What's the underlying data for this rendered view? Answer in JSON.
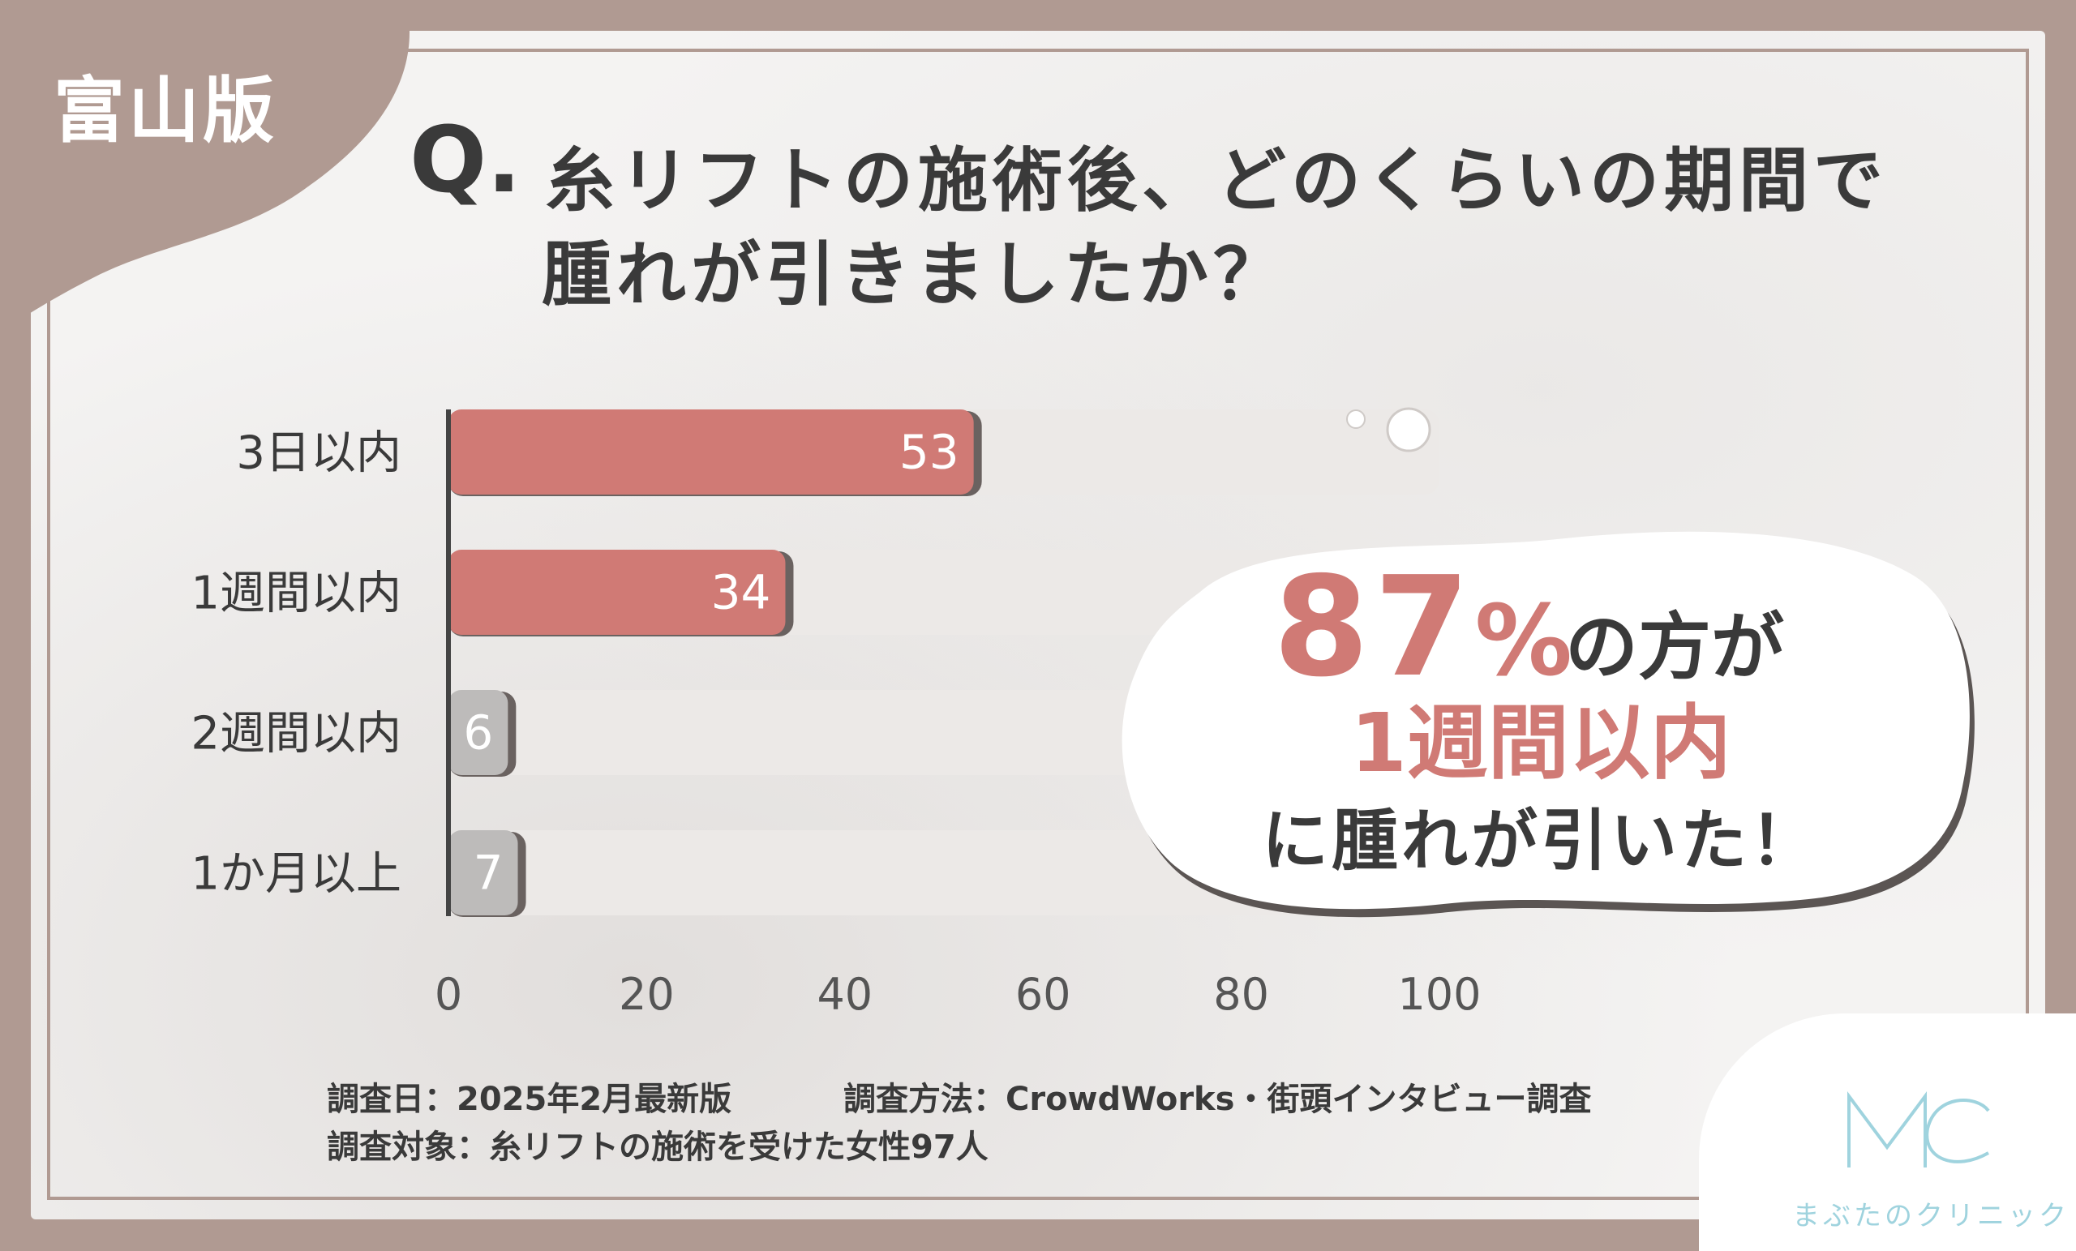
{
  "badge": "富山版",
  "title": {
    "q_mark": "Q.",
    "line1": "糸リフトの施術後、どのくらいの期間で",
    "line2": "腫れが引きましたか？"
  },
  "chart_data": {
    "type": "bar",
    "orientation": "horizontal",
    "categories": [
      "3日以内",
      "1週間以内",
      "2週間以内",
      "1か月以上"
    ],
    "values": [
      53,
      34,
      6,
      7
    ],
    "xlim": [
      0,
      100
    ],
    "xticks": [
      "0",
      "20",
      "40",
      "60",
      "80",
      "100"
    ],
    "grid": false,
    "colors": {
      "highlight": "#d07a75",
      "muted": "#bdbbba",
      "track": "#ece9e7",
      "axis": "#444444"
    },
    "highlight_categories": [
      "3日以内",
      "1週間以内"
    ]
  },
  "callout": {
    "percent": "87",
    "percent_sign": "%",
    "text1": "の方が",
    "text2": "1週間以内",
    "text3": "に腫れが引いた！"
  },
  "footer": {
    "date": "調査日：2025年2月最新版",
    "method": "調査方法：CrowdWorks・街頭インタビュー調査",
    "target": "調査対象：糸リフトの施術を受けた女性97人"
  },
  "logo": {
    "mark": "MC",
    "name": "まぶたのクリニック"
  },
  "colors": {
    "frame": "#b09a92",
    "accent": "#d07a75",
    "logo": "#9fd3de"
  }
}
